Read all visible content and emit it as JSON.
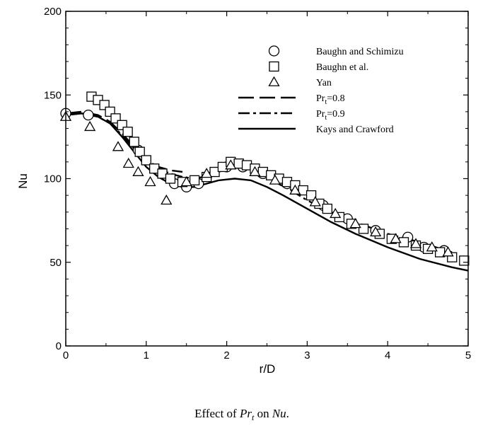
{
  "chart_data": {
    "type": "scatter",
    "caption": {
      "prefix": "Effect of ",
      "pr": "Pr",
      "pr_sub": "t",
      "middle": " on ",
      "nu": "Nu",
      "suffix": "."
    },
    "xlabel": "r/D",
    "ylabel": "Nu",
    "xlim": [
      0,
      5
    ],
    "ylim": [
      0,
      200
    ],
    "xticks": [
      "0",
      "1",
      "2",
      "3",
      "4",
      "5"
    ],
    "yticks": [
      "0",
      "50",
      "100",
      "150",
      "200"
    ],
    "grid": false,
    "legend_position": "top-right",
    "series": [
      {
        "name": "Baughn and Schimizu",
        "kind": "marker",
        "marker": "circle",
        "x": [
          0.0,
          0.28,
          0.9,
          1.35,
          1.5,
          1.65,
          2.0,
          2.2,
          2.45,
          2.75,
          3.2,
          3.5,
          3.85,
          4.25,
          4.45,
          4.7
        ],
        "y": [
          139,
          138,
          117,
          97,
          95,
          97,
          107,
          107,
          103,
          97,
          84,
          76,
          69,
          65,
          59,
          57
        ]
      },
      {
        "name": "Baughn et al.",
        "kind": "marker",
        "marker": "square",
        "x": [
          0.32,
          0.4,
          0.48,
          0.55,
          0.62,
          0.7,
          0.77,
          0.85,
          0.92,
          1.0,
          1.1,
          1.2,
          1.3,
          1.45,
          1.6,
          1.75,
          1.85,
          1.95,
          2.05,
          2.15,
          2.25,
          2.35,
          2.45,
          2.55,
          2.65,
          2.75,
          2.85,
          2.95,
          3.05,
          3.15,
          3.25,
          3.4,
          3.55,
          3.7,
          3.9,
          4.05,
          4.2,
          4.35,
          4.5,
          4.65,
          4.8,
          4.95
        ],
        "y": [
          149,
          147,
          144,
          140,
          136,
          132,
          128,
          122,
          116,
          111,
          106,
          103,
          100,
          98,
          99,
          101,
          104,
          107,
          110,
          109,
          108,
          106,
          104,
          102,
          100,
          98,
          96,
          93,
          90,
          85,
          82,
          77,
          73,
          70,
          67,
          64,
          62,
          60,
          58,
          56,
          53,
          51
        ]
      },
      {
        "name": "Yan",
        "kind": "marker",
        "marker": "triangle",
        "x": [
          0.0,
          0.3,
          0.65,
          0.78,
          0.9,
          1.05,
          1.25,
          1.5,
          1.75,
          2.05,
          2.35,
          2.6,
          2.85,
          3.1,
          3.35,
          3.6,
          3.85,
          4.1,
          4.35,
          4.55,
          4.75
        ],
        "y": [
          137,
          131,
          119,
          109,
          104,
          98,
          87,
          98,
          103,
          108,
          104,
          99,
          93,
          86,
          79,
          73,
          68,
          64,
          61,
          59,
          56
        ]
      },
      {
        "name": "Pr",
        "name_sub": "t",
        "name_suffix": "=0.8",
        "kind": "line",
        "dash": "long-dash",
        "x": [
          0.0,
          0.2,
          0.4,
          0.55,
          0.7,
          0.85,
          1.0,
          1.15,
          1.3,
          1.45
        ],
        "y": [
          139,
          140,
          138,
          134,
          127,
          119,
          111,
          107,
          105,
          104
        ]
      },
      {
        "name": "Pr",
        "name_sub": "t",
        "name_suffix": "=0.9",
        "kind": "line",
        "dash": "dash-dot",
        "x": [
          0.0,
          0.2,
          0.4,
          0.55,
          0.7,
          0.85,
          1.0,
          1.15,
          1.3,
          1.45,
          1.6,
          1.8,
          2.0,
          2.2,
          2.4,
          2.6,
          2.8,
          3.0,
          3.3,
          3.6,
          4.0,
          4.4,
          4.8
        ],
        "y": [
          138,
          139,
          137,
          133,
          126,
          118,
          110,
          106,
          103,
          101,
          100,
          102,
          106,
          107,
          104,
          98,
          93,
          87,
          80,
          74,
          67,
          62,
          56
        ]
      },
      {
        "name": "Kays and Crawford",
        "kind": "line",
        "dash": "solid",
        "x": [
          0.0,
          0.2,
          0.4,
          0.55,
          0.7,
          0.85,
          1.0,
          1.15,
          1.3,
          1.45,
          1.6,
          1.75,
          1.9,
          2.1,
          2.3,
          2.5,
          2.7,
          3.0,
          3.3,
          3.6,
          4.0,
          4.4,
          4.8,
          5.0
        ],
        "y": [
          138,
          139,
          137,
          133,
          125,
          116,
          107,
          101,
          97,
          95,
          95,
          97,
          99,
          100,
          99,
          95,
          90,
          82,
          74,
          67,
          59,
          52,
          47,
          45
        ]
      }
    ]
  }
}
